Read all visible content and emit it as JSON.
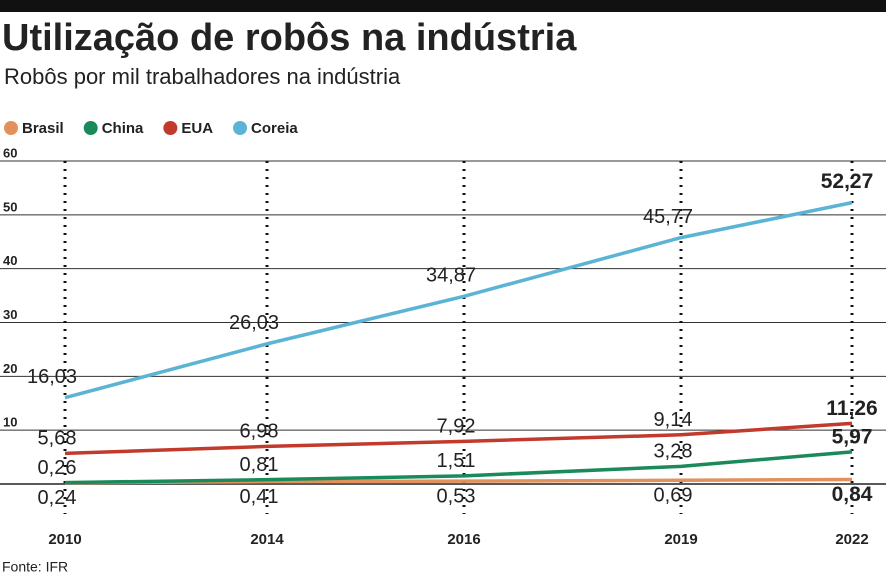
{
  "chart_data": {
    "type": "line",
    "title": "Utilização de robôs na indústria",
    "subtitle": "Robôs por mil trabalhadores na indústria",
    "source": "Fonte: IFR",
    "categories": [
      "2010",
      "2014",
      "2016",
      "2019",
      "2022"
    ],
    "series": [
      {
        "name": "Brasil",
        "color": "#e0915c",
        "values": [
          0.24,
          0.41,
          0.53,
          0.69,
          0.84
        ],
        "value_labels": [
          "0,24",
          "0,41",
          "0,53",
          "0,69",
          "0,84"
        ]
      },
      {
        "name": "China",
        "color": "#1b8a5a",
        "values": [
          0.26,
          0.81,
          1.51,
          3.28,
          5.97
        ],
        "value_labels": [
          "0,26",
          "0,81",
          "1,51",
          "3,28",
          "5,97"
        ]
      },
      {
        "name": "EUA",
        "color": "#c23a2b",
        "values": [
          5.68,
          6.98,
          7.92,
          9.14,
          11.26
        ],
        "value_labels": [
          "5,68",
          "6,98",
          "7,92",
          "9,14",
          "11,26"
        ]
      },
      {
        "name": "Coreia",
        "color": "#5bb3d5",
        "values": [
          16.03,
          26.03,
          34.87,
          45.77,
          52.27
        ],
        "value_labels": [
          "16,03",
          "26,03",
          "34,87",
          "45,77",
          "52,27"
        ]
      }
    ],
    "ylim": [
      0,
      60
    ],
    "yticks": [
      10,
      20,
      30,
      40,
      50,
      60
    ],
    "grid": true
  }
}
